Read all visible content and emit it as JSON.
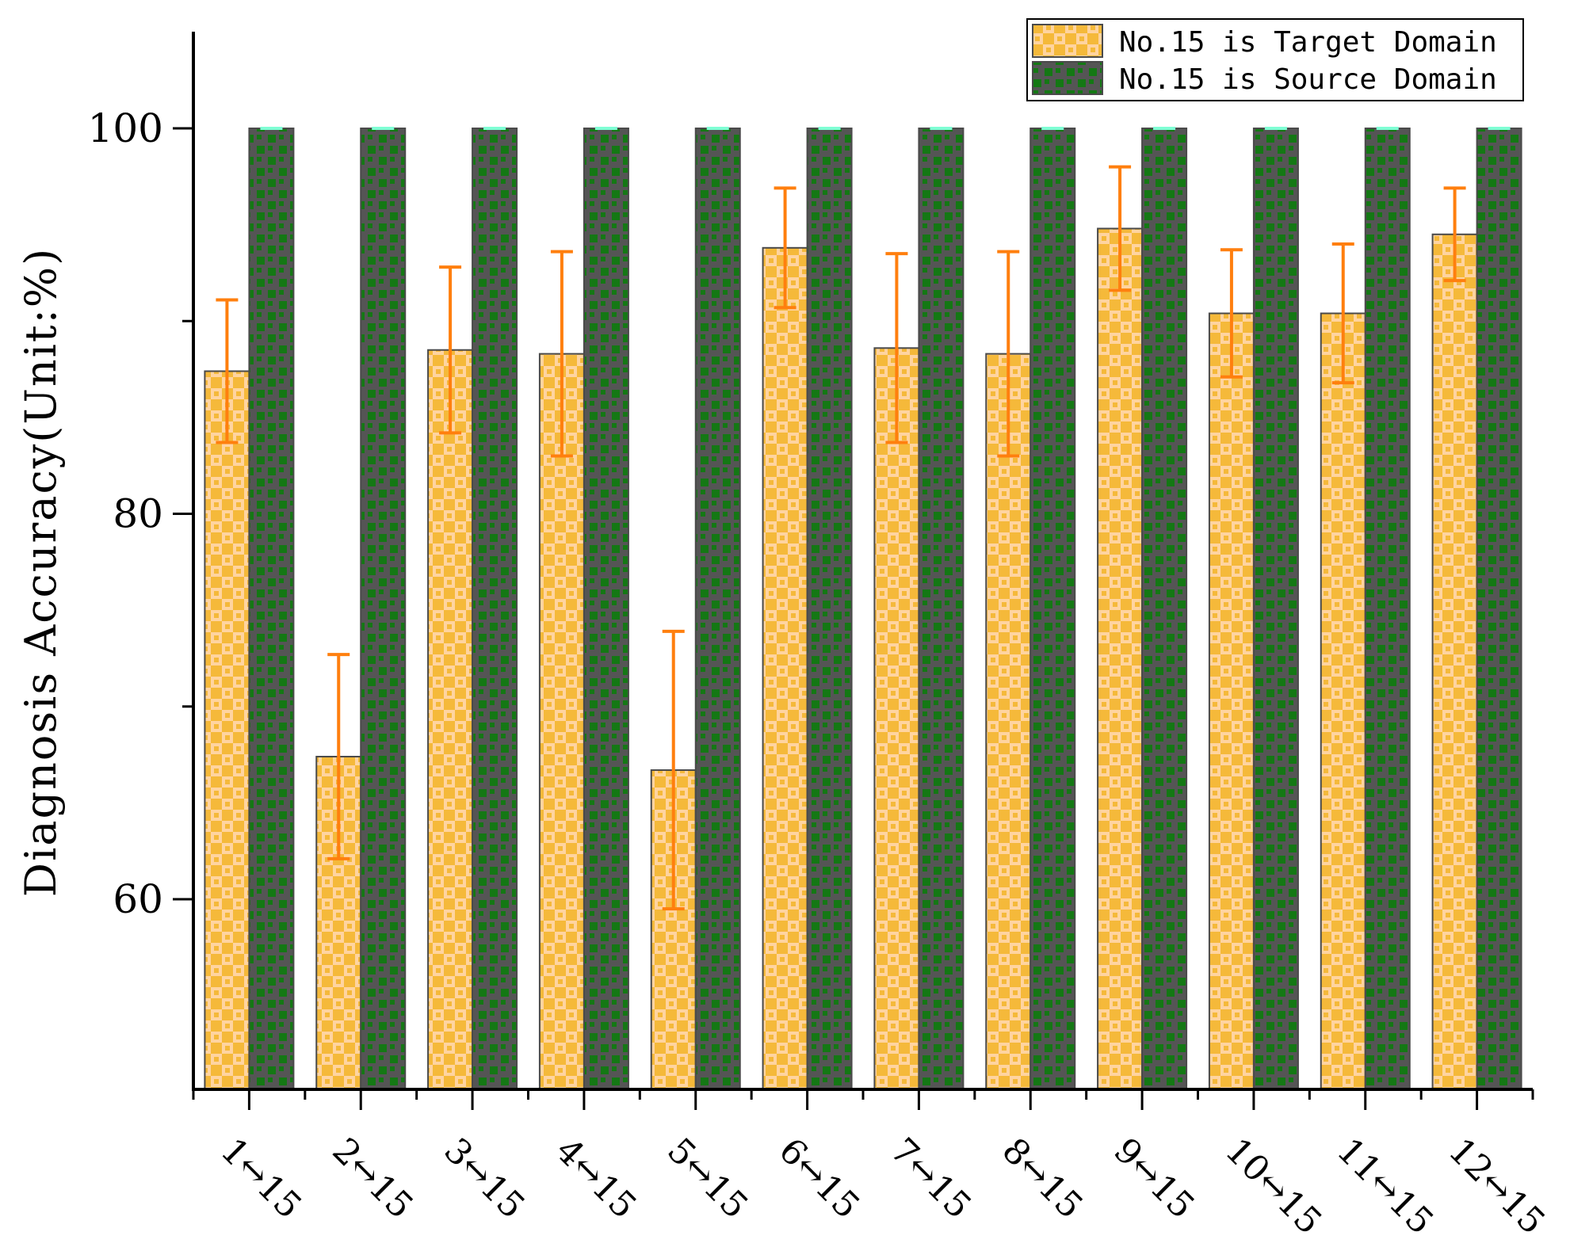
{
  "chart_data": {
    "type": "bar",
    "title": "",
    "xlabel": "",
    "ylabel": "Diagnosis Accuracy(Unit:%)",
    "ylim": [
      50,
      105
    ],
    "yticks": [
      60,
      80,
      100
    ],
    "grid": false,
    "legend_position": "top-right",
    "categories": [
      "1↔15",
      "2↔15",
      "3↔15",
      "4↔15",
      "5↔15",
      "6↔15",
      "7↔15",
      "8↔15",
      "9↔15",
      "10↔15",
      "11↔15",
      "12↔15"
    ],
    "series": [
      {
        "name": "No.15 is Target Domain",
        "color": "#F5B93A",
        "pattern_color": "#FFD4A0",
        "errorbar_color": "#FF7F0E",
        "values": [
          87.4,
          67.4,
          88.5,
          88.3,
          66.7,
          93.8,
          88.6,
          88.3,
          94.8,
          90.4,
          90.4,
          94.5
        ],
        "errors": [
          3.7,
          5.3,
          4.3,
          5.3,
          7.2,
          3.1,
          4.9,
          5.3,
          3.2,
          3.3,
          3.6,
          2.4
        ]
      },
      {
        "name": "No.15 is Source Domain",
        "color": "#147814",
        "pattern_color": "#555555",
        "errorbar_color": "#7FFFD4",
        "values": [
          100,
          100,
          100,
          100,
          100,
          100,
          100,
          100,
          100,
          100,
          100,
          100
        ],
        "errors": [
          0,
          0,
          0,
          0,
          0,
          0,
          0,
          0,
          0,
          0,
          0,
          0
        ]
      }
    ]
  }
}
